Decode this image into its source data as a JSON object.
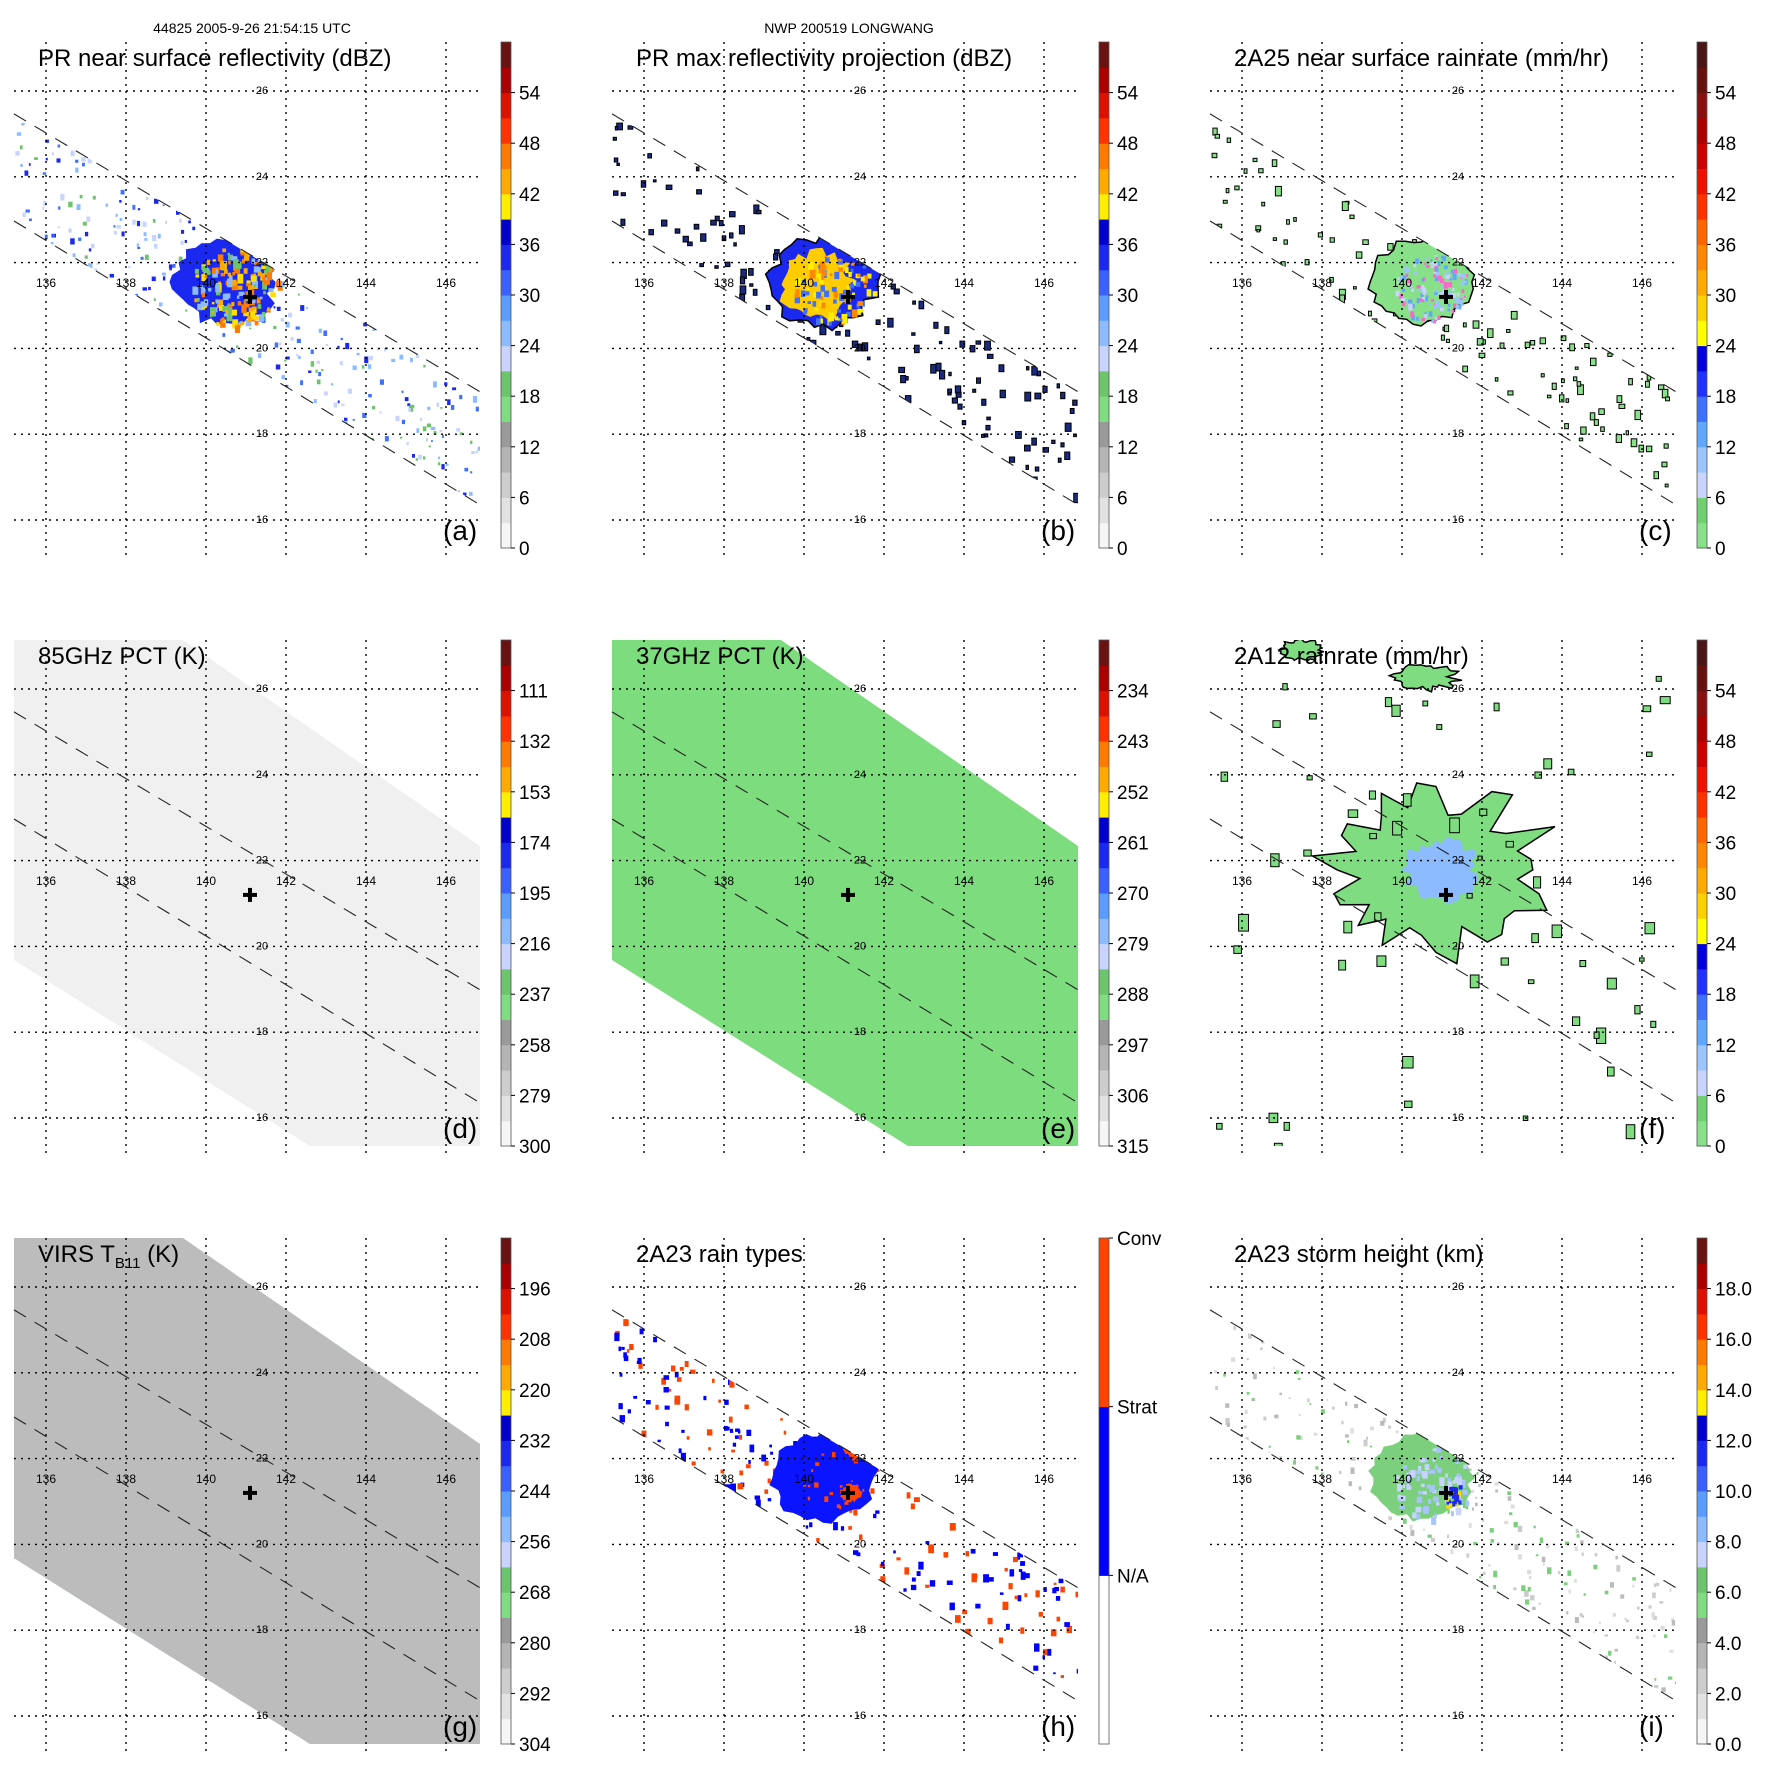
{
  "header": {
    "orbit_time": "44825 2005-9-26 21:54:15 UTC",
    "storm": "NWP 200519 LONGWANG"
  },
  "map_axes": {
    "lon_ticks": [
      "136",
      "138",
      "140",
      "142",
      "144",
      "146"
    ],
    "lat_ticks": [
      "26",
      "24",
      "22",
      "20",
      "18",
      "16"
    ]
  },
  "storm_center": {
    "lon": 141.1,
    "lat": 21.2
  },
  "palettes": {
    "refl": [
      "#f6f6f6",
      "#e2e2e2",
      "#cdcdcd",
      "#b5b5b5",
      "#9a9a9a",
      "#80dc80",
      "#6cc46c",
      "#c8d4ff",
      "#8cbcff",
      "#5a9cff",
      "#3a60ff",
      "#1a28f0",
      "#0000cc",
      "#ffee00",
      "#ffaa00",
      "#ff7a00",
      "#ff3300",
      "#dd1100",
      "#aa0000",
      "#6a1212"
    ],
    "rain": [
      "#88e088",
      "#70d070",
      "#c8d4ff",
      "#9cc4ff",
      "#60a8ff",
      "#4070ff",
      "#2030ff",
      "#0000dd",
      "#ffff00",
      "#ffd000",
      "#ffaa00",
      "#ff8800",
      "#ff6600",
      "#ff3300",
      "#ee1100",
      "#cc0000",
      "#aa0000",
      "#881010",
      "#661010",
      "#4a1515"
    ],
    "raintype": [
      "#ffffff",
      "#0000ff",
      "#ff4400"
    ]
  },
  "panels": [
    {
      "id": "a",
      "title": "PR near surface reflectivity (dBZ)",
      "label": "(a)",
      "palette": "refl",
      "colorbar_labels": [
        "54",
        "48",
        "42",
        "36",
        "30",
        "24",
        "18",
        "12",
        "6",
        "0"
      ]
    },
    {
      "id": "b",
      "title": "PR max reflectivity projection (dBZ)",
      "label": "(b)",
      "palette": "refl",
      "colorbar_labels": [
        "54",
        "48",
        "42",
        "36",
        "30",
        "24",
        "18",
        "12",
        "6",
        "0"
      ]
    },
    {
      "id": "c",
      "title": "2A25 near surface rainrate (mm/hr)",
      "label": "(c)",
      "palette": "rain",
      "colorbar_labels": [
        "54",
        "48",
        "42",
        "36",
        "30",
        "24",
        "18",
        "12",
        "6",
        "0"
      ]
    },
    {
      "id": "d",
      "title": "85GHz PCT (K)",
      "label": "(d)",
      "palette": "refl",
      "colorbar_labels": [
        "111",
        "132",
        "153",
        "174",
        "195",
        "216",
        "237",
        "258",
        "279",
        "300"
      ]
    },
    {
      "id": "e",
      "title": "37GHz PCT (K)",
      "label": "(e)",
      "palette": "refl",
      "colorbar_labels": [
        "234",
        "243",
        "252",
        "261",
        "270",
        "279",
        "288",
        "297",
        "306",
        "315"
      ]
    },
    {
      "id": "f",
      "title": "2A12 rainrate (mm/hr)",
      "label": "(f)",
      "palette": "rain",
      "colorbar_labels": [
        "54",
        "48",
        "42",
        "36",
        "30",
        "24",
        "18",
        "12",
        "6",
        "0"
      ]
    },
    {
      "id": "g",
      "title": "VIRS T",
      "title_sub": "B11",
      "title_suffix": " (K)",
      "label": "(g)",
      "palette": "refl",
      "colorbar_labels": [
        "196",
        "208",
        "220",
        "232",
        "244",
        "256",
        "268",
        "280",
        "292",
        "304"
      ]
    },
    {
      "id": "h",
      "title": "2A23 rain types",
      "label": "(h)",
      "palette": "raintype",
      "colorbar_labels": [
        "Conv",
        "Strat",
        "N/A"
      ]
    },
    {
      "id": "i",
      "title": "2A23 storm height (km)",
      "label": "(i)",
      "palette": "refl",
      "colorbar_labels": [
        "18.0",
        "16.0",
        "14.0",
        "12.0",
        "10.0",
        "8.0",
        "6.0",
        "4.0",
        "2.0",
        "0.0"
      ]
    }
  ]
}
